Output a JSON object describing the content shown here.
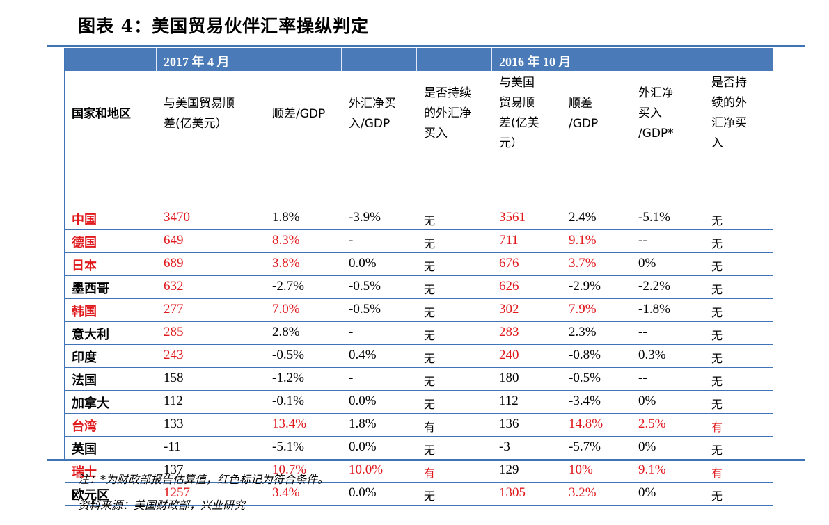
{
  "title": "图表 4：美国贸易伙伴汇率操纵判定",
  "colors": {
    "header_bg": "#4a7ab7",
    "rule": "#3f74b7",
    "highlight": "#e0191d"
  },
  "header": {
    "period_a": "2017 年 4 月",
    "period_b": "2016 年 10 月",
    "columns": {
      "region": "国家和地区",
      "a_surplus": [
        "与美国贸易顺",
        "差(亿美元）"
      ],
      "a_surplus_gdp": "顺差/GDP",
      "a_fx": [
        "外汇净买",
        "入/GDP"
      ],
      "a_persist": [
        "是否持续",
        "的外汇净",
        "买入"
      ],
      "b_surplus": [
        "与美国",
        "贸易顺",
        "差(亿美",
        "元）"
      ],
      "b_surplus_gdp": [
        "顺差",
        "/GDP"
      ],
      "b_fx": [
        "外汇净",
        "买入",
        "/GDP*"
      ],
      "b_persist": [
        "是否持",
        "续的外",
        "汇净买",
        "入"
      ]
    }
  },
  "rows": [
    {
      "name": "中国",
      "name_red": true,
      "a_surplus": "3470",
      "a_surplus_red": true,
      "a_gdp": "1.8%",
      "a_gdp_red": false,
      "a_fx": "-3.9%",
      "a_fx_red": false,
      "a_persist": "无",
      "a_persist_red": false,
      "b_surplus": "3561",
      "b_surplus_red": true,
      "b_gdp": "2.4%",
      "b_gdp_red": false,
      "b_fx": "-5.1%",
      "b_fx_red": false,
      "b_persist": "无",
      "b_persist_red": false
    },
    {
      "name": "德国",
      "name_red": true,
      "a_surplus": "649",
      "a_surplus_red": true,
      "a_gdp": "8.3%",
      "a_gdp_red": true,
      "a_fx": "-",
      "a_fx_red": false,
      "a_persist": "无",
      "a_persist_red": false,
      "b_surplus": "711",
      "b_surplus_red": true,
      "b_gdp": "9.1%",
      "b_gdp_red": true,
      "b_fx": "--",
      "b_fx_red": false,
      "b_persist": "无",
      "b_persist_red": false
    },
    {
      "name": "日本",
      "name_red": true,
      "a_surplus": "689",
      "a_surplus_red": true,
      "a_gdp": "3.8%",
      "a_gdp_red": true,
      "a_fx": "0.0%",
      "a_fx_red": false,
      "a_persist": "无",
      "a_persist_red": false,
      "b_surplus": "676",
      "b_surplus_red": true,
      "b_gdp": "3.7%",
      "b_gdp_red": true,
      "b_fx": "0%",
      "b_fx_red": false,
      "b_persist": "无",
      "b_persist_red": false
    },
    {
      "name": "墨西哥",
      "name_red": false,
      "a_surplus": "632",
      "a_surplus_red": true,
      "a_gdp": "-2.7%",
      "a_gdp_red": false,
      "a_fx": "-0.5%",
      "a_fx_red": false,
      "a_persist": "无",
      "a_persist_red": false,
      "b_surplus": "626",
      "b_surplus_red": true,
      "b_gdp": "-2.9%",
      "b_gdp_red": false,
      "b_fx": "-2.2%",
      "b_fx_red": false,
      "b_persist": "无",
      "b_persist_red": false
    },
    {
      "name": "韩国",
      "name_red": true,
      "a_surplus": "277",
      "a_surplus_red": true,
      "a_gdp": "7.0%",
      "a_gdp_red": true,
      "a_fx": "-0.5%",
      "a_fx_red": false,
      "a_persist": "无",
      "a_persist_red": false,
      "b_surplus": "302",
      "b_surplus_red": true,
      "b_gdp": "7.9%",
      "b_gdp_red": true,
      "b_fx": "-1.8%",
      "b_fx_red": false,
      "b_persist": "无",
      "b_persist_red": false
    },
    {
      "name": "意大利",
      "name_red": false,
      "a_surplus": "285",
      "a_surplus_red": true,
      "a_gdp": "2.8%",
      "a_gdp_red": false,
      "a_fx": "-",
      "a_fx_red": false,
      "a_persist": "无",
      "a_persist_red": false,
      "b_surplus": "283",
      "b_surplus_red": true,
      "b_gdp": "2.3%",
      "b_gdp_red": false,
      "b_fx": "--",
      "b_fx_red": false,
      "b_persist": "无",
      "b_persist_red": false
    },
    {
      "name": "印度",
      "name_red": false,
      "a_surplus": "243",
      "a_surplus_red": true,
      "a_gdp": "-0.5%",
      "a_gdp_red": false,
      "a_fx": "0.4%",
      "a_fx_red": false,
      "a_persist": "无",
      "a_persist_red": false,
      "b_surplus": "240",
      "b_surplus_red": true,
      "b_gdp": "-0.8%",
      "b_gdp_red": false,
      "b_fx": "0.3%",
      "b_fx_red": false,
      "b_persist": "无",
      "b_persist_red": false
    },
    {
      "name": "法国",
      "name_red": false,
      "a_surplus": "158",
      "a_surplus_red": false,
      "a_gdp": "-1.2%",
      "a_gdp_red": false,
      "a_fx": "-",
      "a_fx_red": false,
      "a_persist": "无",
      "a_persist_red": false,
      "b_surplus": "180",
      "b_surplus_red": false,
      "b_gdp": "-0.5%",
      "b_gdp_red": false,
      "b_fx": "--",
      "b_fx_red": false,
      "b_persist": "无",
      "b_persist_red": false
    },
    {
      "name": "加拿大",
      "name_red": false,
      "a_surplus": "112",
      "a_surplus_red": false,
      "a_gdp": "-0.1%",
      "a_gdp_red": false,
      "a_fx": "0.0%",
      "a_fx_red": false,
      "a_persist": "无",
      "a_persist_red": false,
      "b_surplus": "112",
      "b_surplus_red": false,
      "b_gdp": "-3.4%",
      "b_gdp_red": false,
      "b_fx": "0%",
      "b_fx_red": false,
      "b_persist": "无",
      "b_persist_red": false
    },
    {
      "name": "台湾",
      "name_red": true,
      "a_surplus": "133",
      "a_surplus_red": false,
      "a_gdp": "13.4%",
      "a_gdp_red": true,
      "a_fx": "1.8%",
      "a_fx_red": false,
      "a_persist": "有",
      "a_persist_red": false,
      "b_surplus": "136",
      "b_surplus_red": false,
      "b_gdp": "14.8%",
      "b_gdp_red": true,
      "b_fx": "2.5%",
      "b_fx_red": true,
      "b_persist": "有",
      "b_persist_red": true
    },
    {
      "name": "英国",
      "name_red": false,
      "a_surplus": "-11",
      "a_surplus_red": false,
      "a_gdp": "-5.1%",
      "a_gdp_red": false,
      "a_fx": "0.0%",
      "a_fx_red": false,
      "a_persist": "无",
      "a_persist_red": false,
      "b_surplus": "-3",
      "b_surplus_red": false,
      "b_gdp": "-5.7%",
      "b_gdp_red": false,
      "b_fx": "0%",
      "b_fx_red": false,
      "b_persist": "无",
      "b_persist_red": false
    },
    {
      "name": "瑞士",
      "name_red": true,
      "a_surplus": "137",
      "a_surplus_red": false,
      "a_gdp": "10.7%",
      "a_gdp_red": true,
      "a_fx": "10.0%",
      "a_fx_red": true,
      "a_persist": "有",
      "a_persist_red": true,
      "b_surplus": "129",
      "b_surplus_red": false,
      "b_gdp": "10%",
      "b_gdp_red": true,
      "b_fx": "9.1%",
      "b_fx_red": true,
      "b_persist": "有",
      "b_persist_red": true
    },
    {
      "name": "欧元区",
      "name_red": false,
      "a_surplus": "1257",
      "a_surplus_red": true,
      "a_gdp": "3.4%",
      "a_gdp_red": true,
      "a_fx": "0.0%",
      "a_fx_red": false,
      "a_persist": "无",
      "a_persist_red": false,
      "b_surplus": "1305",
      "b_surplus_red": true,
      "b_gdp": "3.2%",
      "b_gdp_red": true,
      "b_fx": "0%",
      "b_fx_red": false,
      "b_persist": "无",
      "b_persist_red": false
    }
  ],
  "note": "注：*为财政部报告估算值，红色标记为符合条件。",
  "source": "资料来源：美国财政部，兴业研究"
}
